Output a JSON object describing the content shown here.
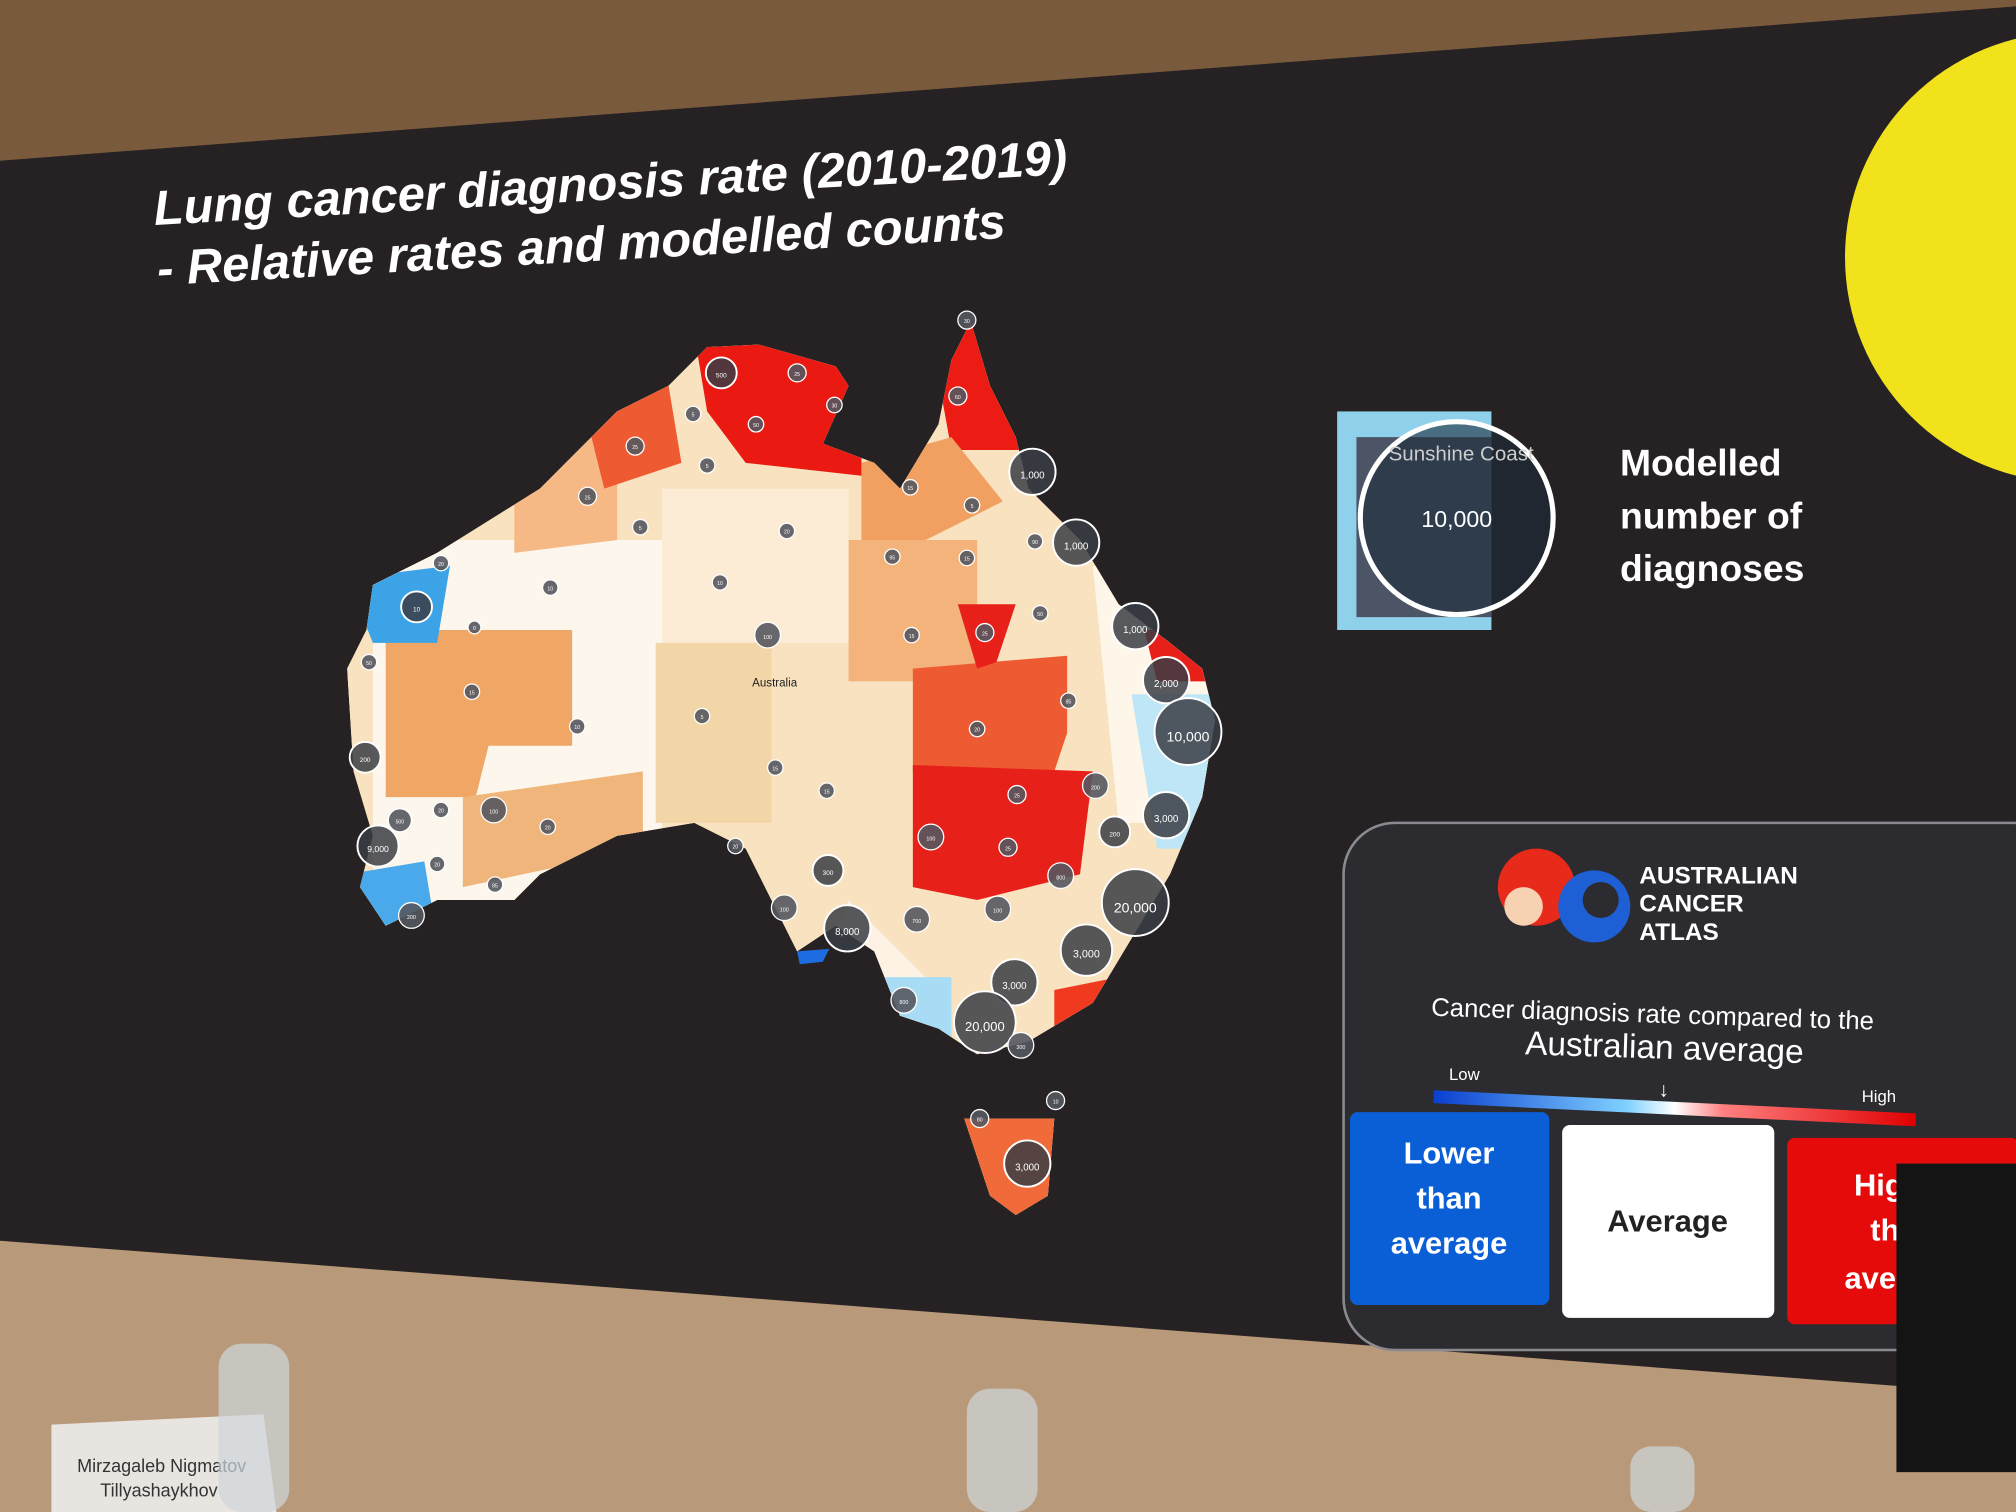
{
  "slide": {
    "title_lines": [
      "Lung cancer diagnosis rate (2010-2019)",
      "- Relative rates and modelled counts"
    ],
    "country": "Australia",
    "clusters": [
      "30",
      "500",
      "25",
      "30",
      "5",
      "50",
      "60",
      "25",
      "1,000",
      "5",
      "15",
      "25",
      "5",
      "5",
      "20",
      "90",
      "1,000",
      "95",
      "15",
      "20",
      "10",
      "10",
      "10",
      "50",
      "1,000",
      "0",
      "100",
      "15",
      "25",
      "50",
      "2,000",
      "15",
      "85",
      "5",
      "10",
      "20",
      "10,000",
      "200",
      "15",
      "15",
      "200",
      "25",
      "3,000",
      "500",
      "20",
      "100",
      "20",
      "200",
      "100",
      "25",
      "20",
      "9,000",
      "20",
      "300",
      "800",
      "20,000",
      "85",
      "100",
      "100",
      "700",
      "8,000",
      "200",
      "3,000",
      "3,000",
      "800",
      "20,000",
      "300",
      "10",
      "80",
      "3,000"
    ],
    "inset": {
      "place": "Sunshine Coast",
      "count": "10,000"
    },
    "inset_caption": [
      "Modelled",
      "number of",
      "diagnoses"
    ],
    "legend": {
      "logo": [
        "AUSTRALIAN",
        "CANCER",
        "ATLAS"
      ],
      "caption_lines": [
        "Cancer diagnosis rate compared to the",
        "Australian average"
      ],
      "low": "Low",
      "high": "High",
      "boxes": [
        [
          "Lower",
          "than",
          "average"
        ],
        [
          "Average"
        ],
        [
          "Higher",
          "than",
          "average"
        ]
      ]
    }
  },
  "name_card": [
    "Mirzagaleb Nigmatov",
    "Tillyashaykhov"
  ]
}
